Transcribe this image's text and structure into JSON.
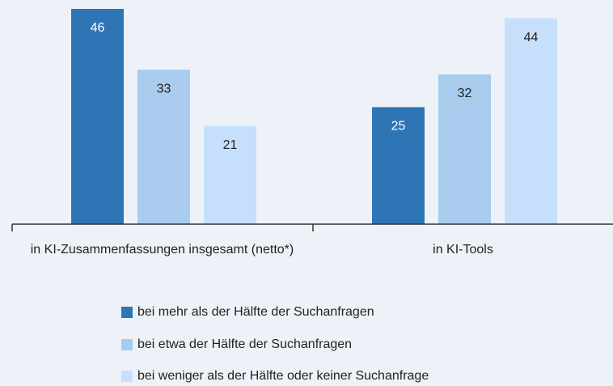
{
  "chart_data": {
    "type": "bar",
    "categories": [
      "in KI-Zusammenfassungen insgesamt (netto*)",
      "in KI-Tools"
    ],
    "series": [
      {
        "name": "bei mehr als der Hälfte der Suchanfragen",
        "color": "#2e75b6",
        "values": [
          46,
          25
        ]
      },
      {
        "name": "bei etwa der Hälfte der Suchanfragen",
        "color": "#a9cbee",
        "values": [
          33,
          32
        ]
      },
      {
        "name": "bei weniger als der Hälfte oder keiner Suchanfrage",
        "color": "#c6e0fb",
        "values": [
          21,
          44
        ]
      }
    ],
    "legend": "bottom"
  }
}
